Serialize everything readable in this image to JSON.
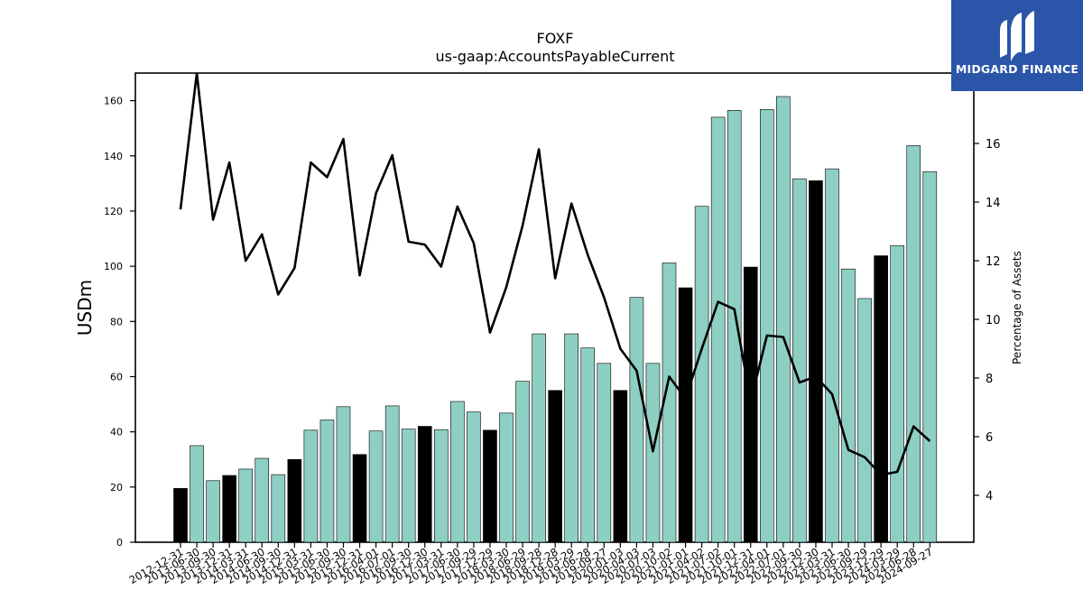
{
  "brand": {
    "name": "MIDGARD FINANCE",
    "logo_icon": "midgard-logo-icon",
    "color": "#2a55a8"
  },
  "chart_data": {
    "type": "bar",
    "title": "FOXF",
    "subtitle": "us-gaap:AccountsPayableCurrent",
    "ylabel": "USDm",
    "y2label": "Percentage of Assets",
    "ylim": [
      0,
      170
    ],
    "y2lim": [
      2.4,
      18.4
    ],
    "yticks": [
      0,
      20,
      40,
      60,
      80,
      100,
      120,
      140,
      160
    ],
    "y2ticks": [
      4,
      6,
      8,
      10,
      12,
      14,
      16
    ],
    "colors": {
      "annual": "#000000",
      "quarterly": "#8ecfc3",
      "line": "#000000"
    },
    "categories": [
      "2012-12-31",
      "2013-06-30",
      "2013-09-30",
      "2013-12-31",
      "2014-03-31",
      "2014-06-30",
      "2014-09-30",
      "2014-12-31",
      "2015-03-31",
      "2015-06-30",
      "2015-09-30",
      "2015-12-31",
      "2016-04-01",
      "2016-07-01",
      "2016-09-30",
      "2016-12-30",
      "2017-03-31",
      "2017-06-30",
      "2017-09-29",
      "2017-12-29",
      "2018-03-30",
      "2018-06-29",
      "2018-09-28",
      "2018-12-28",
      "2019-03-29",
      "2019-06-28",
      "2019-09-27",
      "2020-01-03",
      "2020-04-03",
      "2020-07-03",
      "2020-10-02",
      "2021-01-01",
      "2021-04-02",
      "2021-07-02",
      "2021-10-01",
      "2021-12-31",
      "2022-04-01",
      "2022-07-01",
      "2022-09-30",
      "2022-12-30",
      "2023-03-31",
      "2023-06-30",
      "2023-09-29",
      "2023-12-29",
      "2024-03-29",
      "2024-06-28",
      "2024-09-27"
    ],
    "series": [
      {
        "values": [
          19.5,
          35,
          22.3,
          24.2,
          26.5,
          30.4,
          24.5,
          30,
          40.6,
          44.3,
          49.1,
          31.8,
          40.3,
          49.4,
          41,
          42,
          40.8,
          51,
          47.2,
          40.6,
          46.8,
          58.3,
          75.5,
          55,
          75.5,
          70.4,
          64.8,
          55,
          88.7,
          64.8,
          101.2,
          92.2,
          121.7,
          154,
          156.5,
          99.7,
          156.8,
          161.5,
          131.7,
          131,
          135.3,
          99,
          88.3,
          103.8,
          107.5,
          143.7,
          134.3
        ]
      },
      {
        "values": [
          13.75,
          18.4,
          13.4,
          15.35,
          12.0,
          12.9,
          10.85,
          11.75,
          15.35,
          14.85,
          16.15,
          11.5,
          14.3,
          15.6,
          12.65,
          12.55,
          11.8,
          13.85,
          12.6,
          9.55,
          11.1,
          13.2,
          15.8,
          11.4,
          13.95,
          12.2,
          10.75,
          9.0,
          8.25,
          5.5,
          8.05,
          7.3,
          9.0,
          10.6,
          10.35,
          7.2,
          9.45,
          9.4,
          7.85,
          8.05,
          7.45,
          5.55,
          5.3,
          4.7,
          4.8,
          6.35,
          5.85
        ]
      }
    ],
    "annual_flags": [
      1,
      0,
      0,
      1,
      0,
      0,
      0,
      1,
      0,
      0,
      0,
      1,
      0,
      0,
      0,
      1,
      0,
      0,
      0,
      1,
      0,
      0,
      0,
      1,
      0,
      0,
      0,
      1,
      0,
      0,
      0,
      1,
      0,
      0,
      0,
      1,
      0,
      0,
      0,
      1,
      0,
      0,
      0,
      1,
      0,
      0,
      0
    ]
  }
}
